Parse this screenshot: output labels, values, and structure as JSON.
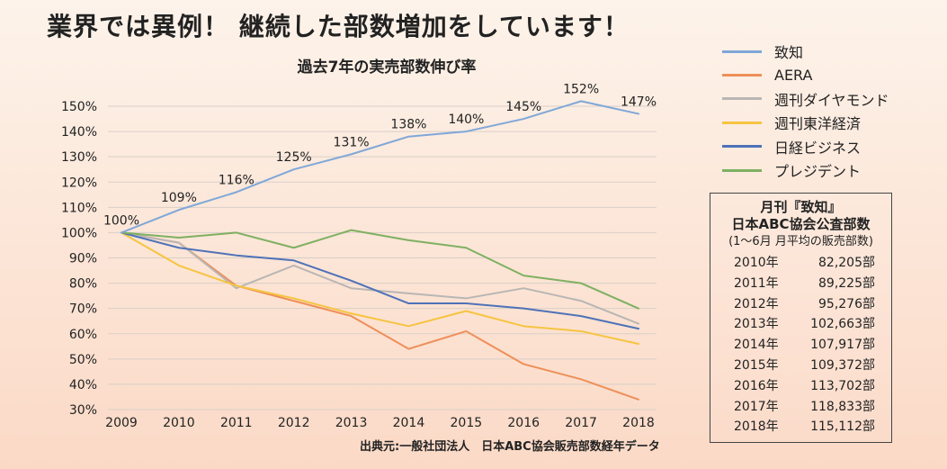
{
  "headline": "業界では異例！ 継続した部数増加をしています！",
  "source": "出典元:一般社団法人　日本ABC協会販売部数経年データ",
  "circulation_box": {
    "title1": "月刊『致知』",
    "title2": "日本ABC協会公査部数",
    "subtitle": "(1〜6月 月平均の販売部数)",
    "rows": [
      {
        "year": "2010年",
        "value": "82,205部"
      },
      {
        "year": "2011年",
        "value": "89,225部"
      },
      {
        "year": "2012年",
        "value": "95,276部"
      },
      {
        "year": "2013年",
        "value": "102,663部"
      },
      {
        "year": "2014年",
        "value": "107,917部"
      },
      {
        "year": "2015年",
        "value": "109,372部"
      },
      {
        "year": "2016年",
        "value": "113,702部"
      },
      {
        "year": "2017年",
        "value": "118,833部"
      },
      {
        "year": "2018年",
        "value": "115,112部"
      }
    ]
  },
  "chart_data": {
    "type": "line",
    "title": "過去7年の実売部数伸び率",
    "x": [
      "2009",
      "2010",
      "2011",
      "2012",
      "2013",
      "2014",
      "2015",
      "2016",
      "2017",
      "2018"
    ],
    "ylim": [
      30,
      150
    ],
    "yticks": [
      "150%",
      "140%",
      "130%",
      "120%",
      "110%",
      "100%",
      "90%",
      "80%",
      "70%",
      "60%",
      "50%",
      "40%",
      "30%"
    ],
    "grid": true,
    "legend": "right",
    "series": [
      {
        "name": "致知",
        "color": "#7fa7d8",
        "values": [
          100,
          109,
          116,
          125,
          131,
          138,
          140,
          145,
          152,
          147
        ],
        "labels": [
          "100%",
          "109%",
          "116%",
          "125%",
          "131%",
          "138%",
          "140%",
          "145%",
          "152%",
          "147%"
        ]
      },
      {
        "name": "AERA",
        "color": "#ee8f58",
        "values": [
          100,
          96,
          79,
          73,
          67,
          54,
          61,
          48,
          42,
          34
        ]
      },
      {
        "name": "週刊ダイヤモンド",
        "color": "#b9b6b4",
        "values": [
          100,
          96,
          78,
          87,
          78,
          76,
          74,
          78,
          73,
          64
        ]
      },
      {
        "name": "週刊東洋経済",
        "color": "#f6c440",
        "values": [
          100,
          87,
          79,
          74,
          68,
          63,
          69,
          63,
          61,
          56
        ]
      },
      {
        "name": "日経ビジネス",
        "color": "#4e72b8",
        "values": [
          100,
          94,
          91,
          89,
          81,
          72,
          72,
          70,
          67,
          62
        ]
      },
      {
        "name": "プレジデント",
        "color": "#7fb061",
        "values": [
          100,
          98,
          100,
          94,
          101,
          97,
          94,
          83,
          80,
          70
        ]
      }
    ]
  }
}
